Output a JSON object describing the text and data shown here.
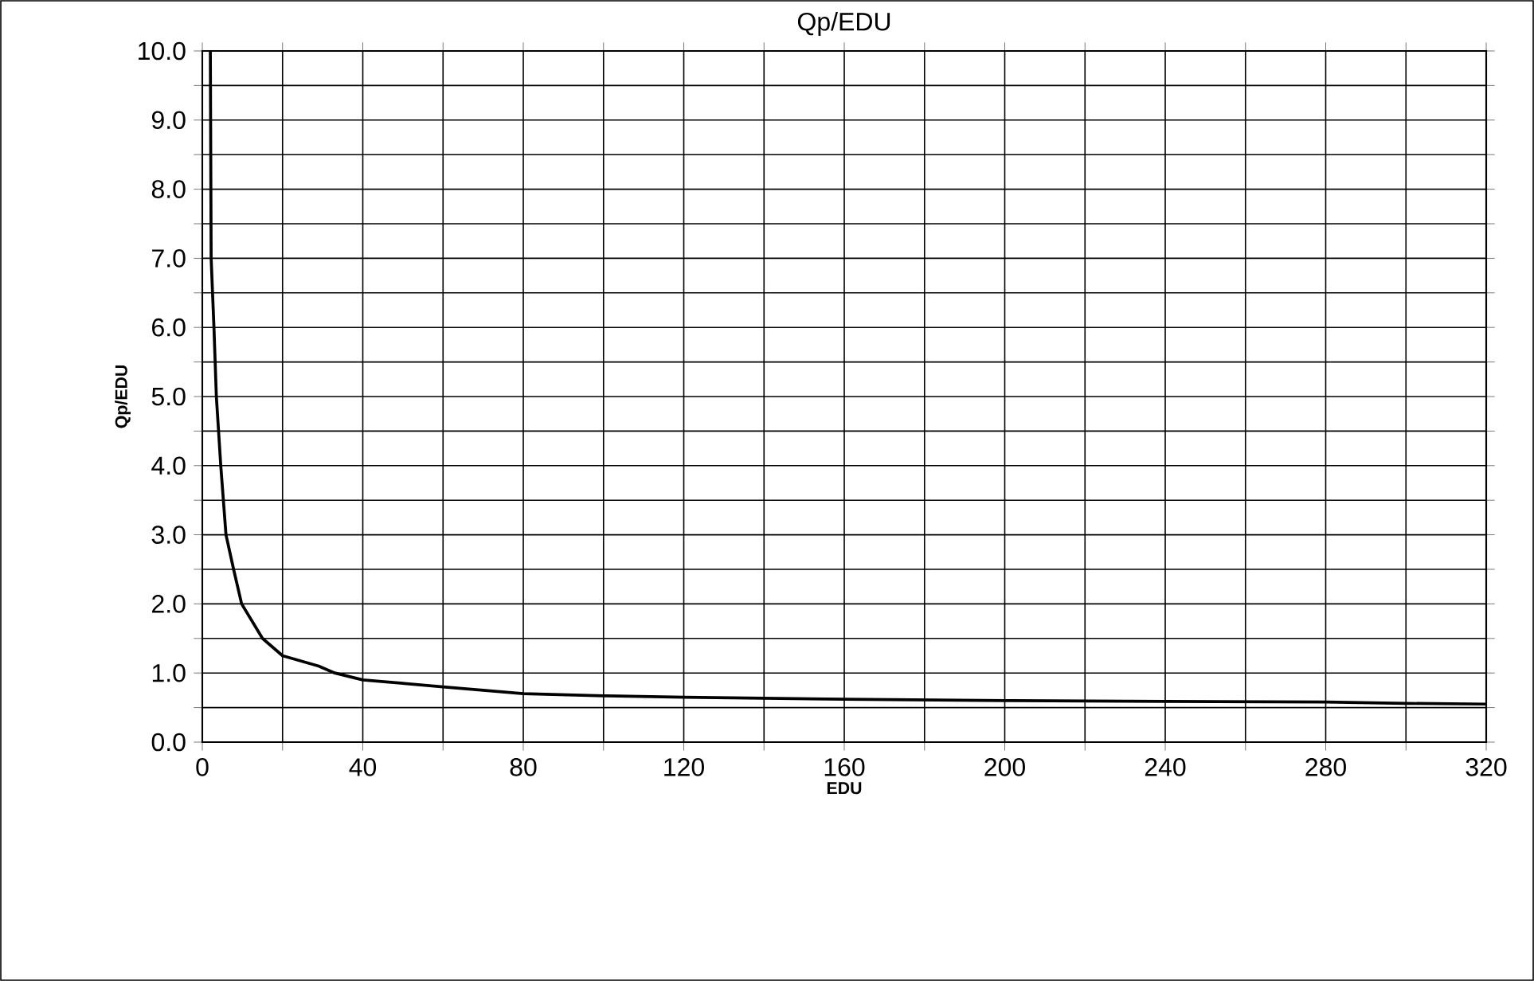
{
  "chart_data": {
    "type": "line",
    "title": "Qp/EDU",
    "xlabel": "EDU",
    "ylabel": "Qp/EDU",
    "color": "#000000",
    "grid": true,
    "line_style": "solid",
    "xlim": [
      0,
      320
    ],
    "ylim": [
      0,
      10
    ],
    "xticks": [
      0,
      {
        "value": 20,
        "label": null
      },
      40,
      {
        "value": 60,
        "label": null
      },
      80,
      {
        "value": 100,
        "label": null
      },
      120,
      {
        "value": 140,
        "label": null
      },
      160,
      {
        "value": 180,
        "label": null
      },
      200,
      {
        "value": 220,
        "label": null
      },
      240,
      {
        "value": 260,
        "label": null
      },
      280,
      {
        "value": 300,
        "label": null
      },
      320
    ],
    "yticks": [
      {
        "value": 0,
        "label": "0.0"
      },
      {
        "value": 0.5,
        "label": null
      },
      {
        "value": 1,
        "label": "1.0"
      },
      {
        "value": 1.5,
        "label": null
      },
      {
        "value": 2,
        "label": "2.0"
      },
      {
        "value": 2.5,
        "label": null
      },
      {
        "value": 3,
        "label": "3.0"
      },
      {
        "value": 3.5,
        "label": null
      },
      {
        "value": 4,
        "label": "4.0"
      },
      {
        "value": 4.5,
        "label": null
      },
      {
        "value": 5,
        "label": "5.0"
      },
      {
        "value": 5.5,
        "label": null
      },
      {
        "value": 6,
        "label": "6.0"
      },
      {
        "value": 6.5,
        "label": null
      },
      {
        "value": 7,
        "label": "7.0"
      },
      {
        "value": 7.5,
        "label": null
      },
      {
        "value": 8,
        "label": "8.0"
      },
      {
        "value": 8.5,
        "label": null
      },
      {
        "value": 9,
        "label": "9.0"
      },
      {
        "value": 9.5,
        "label": null
      },
      {
        "value": 10,
        "label": "10.0"
      }
    ],
    "x": [
      2,
      2.2,
      2.9,
      3.5,
      4.6,
      5.9,
      7.8,
      9.8,
      15,
      20,
      29,
      33,
      40,
      50,
      60,
      80,
      100,
      120,
      160,
      200,
      240,
      280,
      300,
      320
    ],
    "values": [
      10,
      7,
      6,
      5,
      4,
      3,
      2.5,
      2,
      1.5,
      1.25,
      1.1,
      1,
      0.9,
      0.85,
      0.8,
      0.7,
      0.67,
      0.65,
      0.62,
      0.6,
      0.59,
      0.58,
      0.56,
      0.55
    ]
  }
}
